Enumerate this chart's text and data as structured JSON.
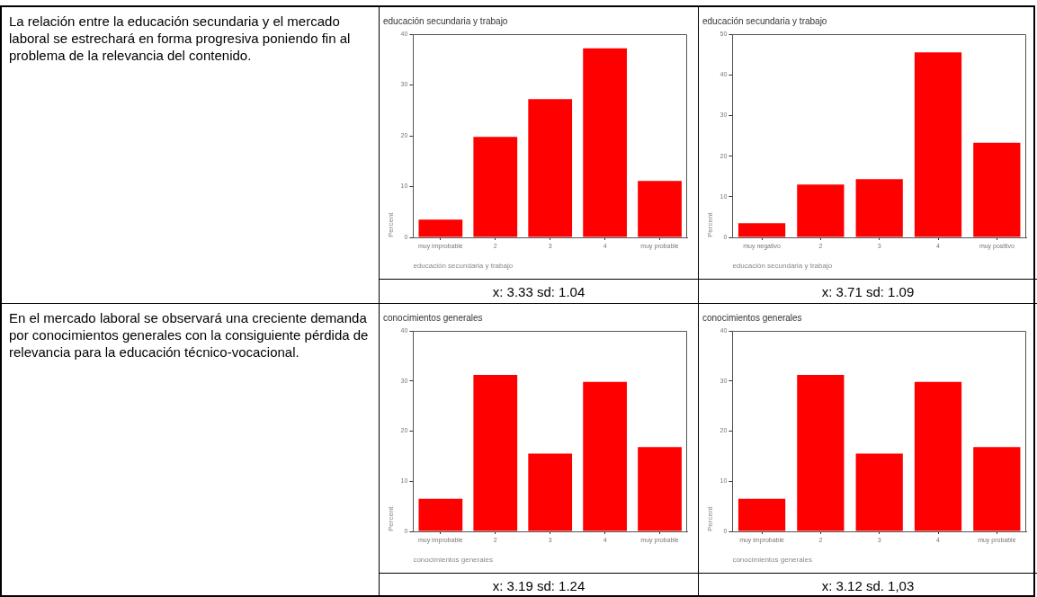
{
  "chart_data": [
    {
      "type": "other",
      "annotations": [
        "La relación entre la educación secundaria y el mercado laboral se estrechará en forma progresiva poniendo fin al problema de la relevancia del contenido."
      ]
    },
    {
      "type": "bar",
      "title": "educación secundaria y trabajo",
      "xlabel": "educación secundaria y trabajo",
      "ylabel": "Percent",
      "categories": [
        "muy improbable",
        "2",
        "3",
        "4",
        "muy probable"
      ],
      "values": [
        3.5,
        19.8,
        27.2,
        37.2,
        11.1
      ],
      "color": "#ff0000",
      "ylim": [
        0,
        40
      ],
      "yticks": [
        0,
        10,
        20,
        30,
        40
      ],
      "grid": false,
      "annotations": [
        "x: 3.33 sd: 1.04"
      ]
    },
    {
      "type": "bar",
      "title": "educación secundaria y trabajo",
      "xlabel": "educación secundaria y trabajo",
      "ylabel": "Percent",
      "categories": [
        "muy negativo",
        "2",
        "3",
        "4",
        "muy positivo"
      ],
      "values": [
        3.5,
        13.0,
        14.3,
        45.5,
        23.3
      ],
      "color": "#ff0000",
      "ylim": [
        0,
        50
      ],
      "yticks": [
        0,
        10,
        20,
        30,
        40,
        50
      ],
      "grid": false,
      "annotations": [
        "x: 3.71 sd: 1.09"
      ]
    },
    {
      "type": "other",
      "annotations": [
        "En el mercado laboral se observará una creciente demanda por conocimientos generales con la consiguiente pérdida de relevancia para la educación técnico-vocacional."
      ]
    },
    {
      "type": "bar",
      "title": "conocimientos generales",
      "xlabel": "conocimientos generales",
      "ylabel": "Percent",
      "categories": [
        "muy improbable",
        "2",
        "3",
        "4",
        "muy probable"
      ],
      "values": [
        6.5,
        31.2,
        15.5,
        29.8,
        16.8
      ],
      "color": "#ff0000",
      "ylim": [
        0,
        40
      ],
      "yticks": [
        0,
        10,
        20,
        30,
        40
      ],
      "grid": false,
      "annotations": [
        "x: 3.19 sd: 1.24"
      ]
    },
    {
      "type": "bar",
      "title": "conocimientos generales",
      "xlabel": "conocimientos generales",
      "ylabel": "Percent",
      "categories": [
        "muy improbable",
        "2",
        "3",
        "4",
        "muy probable"
      ],
      "values": [
        6.5,
        31.2,
        15.5,
        29.8,
        16.8
      ],
      "color": "#ff0000",
      "ylim": [
        0,
        40
      ],
      "yticks": [
        0,
        10,
        20,
        30,
        40
      ],
      "grid": false,
      "annotations": [
        "x: 3.12 sd. 1,03"
      ]
    }
  ]
}
